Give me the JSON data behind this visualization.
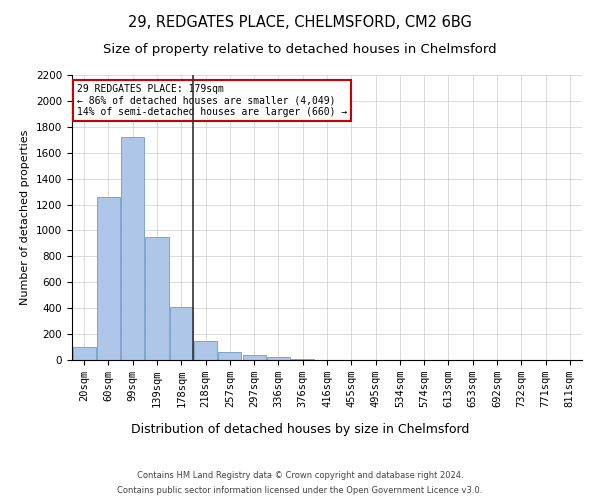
{
  "title1": "29, REDGATES PLACE, CHELMSFORD, CM2 6BG",
  "title2": "Size of property relative to detached houses in Chelmsford",
  "xlabel": "Distribution of detached houses by size in Chelmsford",
  "ylabel": "Number of detached properties",
  "categories": [
    "20sqm",
    "60sqm",
    "99sqm",
    "139sqm",
    "178sqm",
    "218sqm",
    "257sqm",
    "297sqm",
    "336sqm",
    "376sqm",
    "416sqm",
    "455sqm",
    "495sqm",
    "534sqm",
    "574sqm",
    "613sqm",
    "653sqm",
    "692sqm",
    "732sqm",
    "771sqm",
    "811sqm"
  ],
  "values": [
    100,
    1260,
    1720,
    950,
    410,
    145,
    65,
    35,
    25,
    5,
    3,
    2,
    1,
    1,
    0,
    0,
    0,
    0,
    0,
    0,
    0
  ],
  "bar_color": "#aec6e8",
  "bar_edge_color": "#5a8fc0",
  "vline_x_index": 4,
  "vline_color": "#333333",
  "annotation_text": "29 REDGATES PLACE: 179sqm\n← 86% of detached houses are smaller (4,049)\n14% of semi-detached houses are larger (660) →",
  "annotation_box_color": "#ffffff",
  "annotation_box_edge": "#cc0000",
  "ylim": [
    0,
    2200
  ],
  "yticks": [
    0,
    200,
    400,
    600,
    800,
    1000,
    1200,
    1400,
    1600,
    1800,
    2000,
    2200
  ],
  "footer1": "Contains HM Land Registry data © Crown copyright and database right 2024.",
  "footer2": "Contains public sector information licensed under the Open Government Licence v3.0.",
  "bg_color": "#ffffff",
  "grid_color": "#cccccc",
  "title1_fontsize": 10.5,
  "title2_fontsize": 9.5,
  "xlabel_fontsize": 9,
  "ylabel_fontsize": 8,
  "tick_fontsize": 7.5,
  "footer_fontsize": 6,
  "annotation_fontsize": 7
}
